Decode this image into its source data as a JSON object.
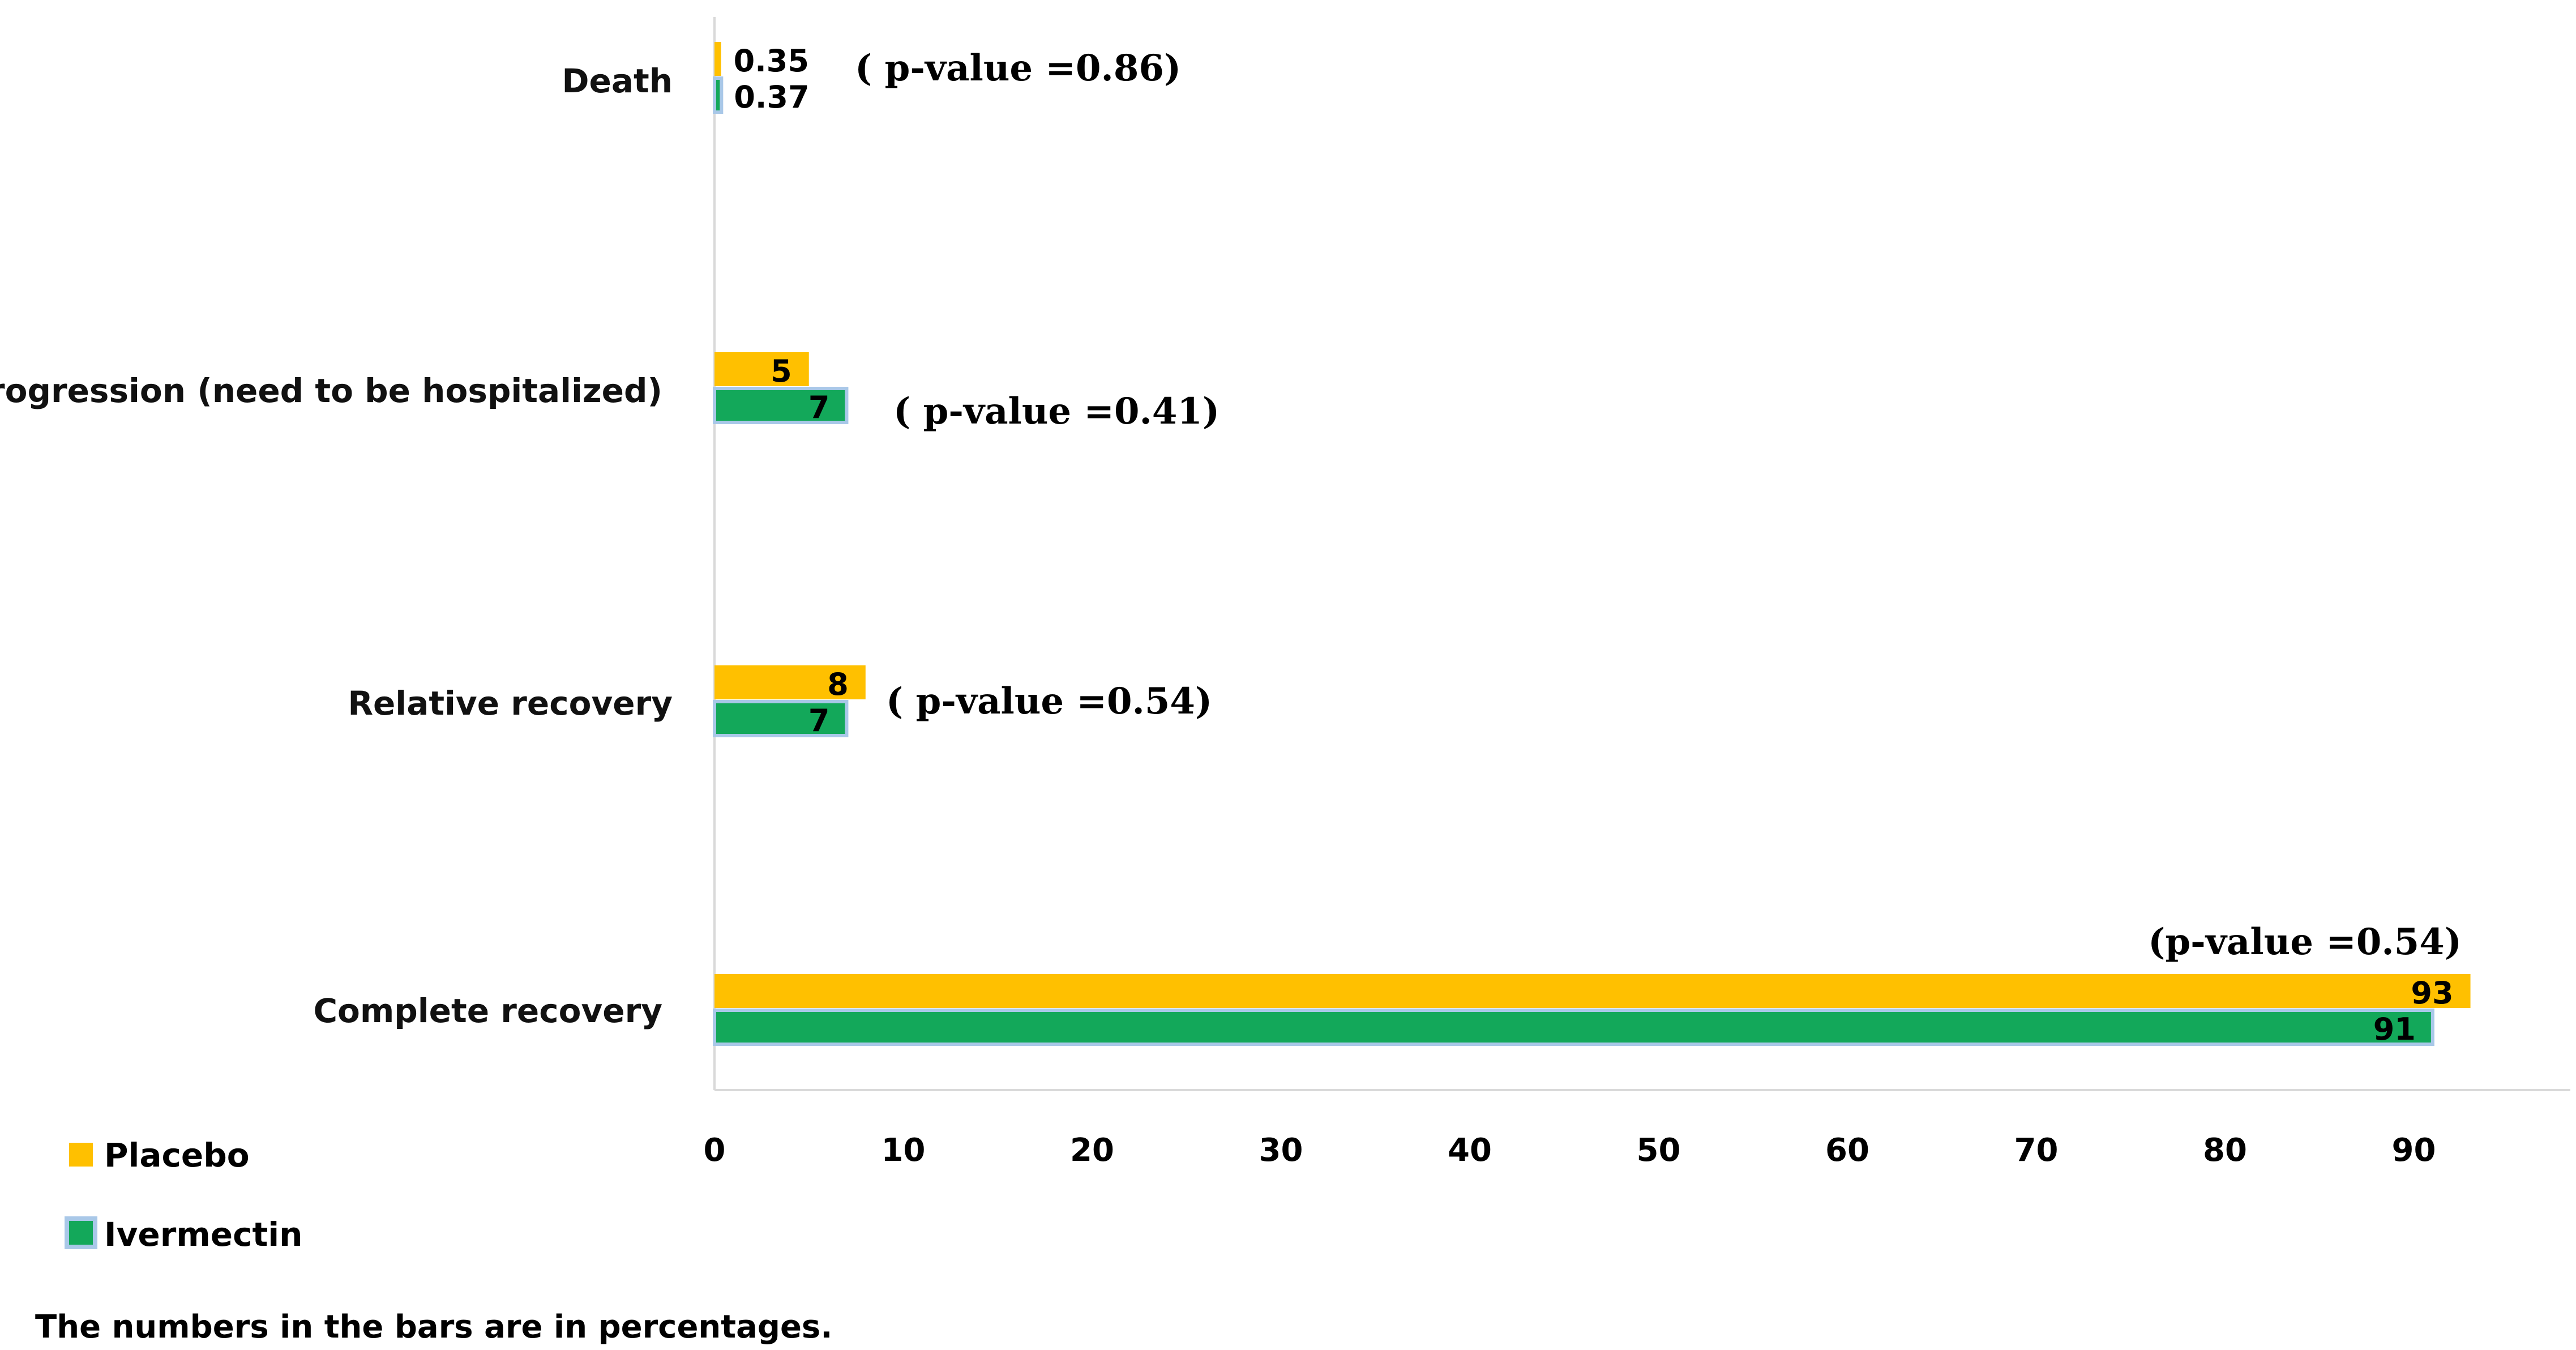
{
  "chart_data": {
    "type": "bar",
    "orientation": "horizontal",
    "categories": [
      "Death",
      "Progression (need to be hospitalized)",
      "Relative recovery",
      "Complete recovery"
    ],
    "series": [
      {
        "name": "Placebo",
        "values": [
          0.35,
          5,
          8,
          93
        ],
        "labels": [
          "0.35",
          "5",
          "8",
          "93"
        ],
        "color": "#FFC000"
      },
      {
        "name": "Ivermectin",
        "values": [
          0.37,
          7,
          7,
          91
        ],
        "labels": [
          "0.37",
          "7",
          "7",
          "91"
        ],
        "color": "#13A85A"
      }
    ],
    "annotations": [
      "( p-value =0.86)",
      "( p-value =0.41)",
      "( p-value =0.54)",
      "(p-value =0.54)"
    ],
    "xlim": [
      0,
      98
    ],
    "xticks": [
      "0",
      "10",
      "20",
      "30",
      "40",
      "50",
      "60",
      "70",
      "80",
      "90"
    ],
    "tick_values": [
      0,
      10,
      20,
      30,
      40,
      50,
      60,
      70,
      80,
      90
    ],
    "legend_placement": "bottom-left",
    "grid": false,
    "note": "The numbers in the bars are in percentages."
  }
}
